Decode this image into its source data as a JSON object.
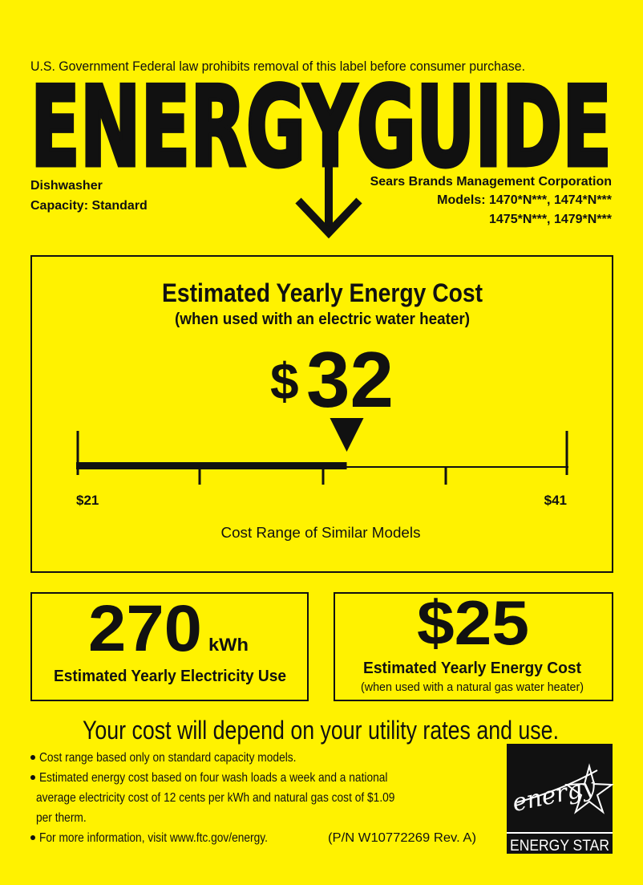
{
  "header": {
    "notice": "U.S. Government  Federal law prohibits removal of this label before consumer purchase.",
    "title": "ENERGYGUIDE"
  },
  "product": {
    "type": "Dishwasher",
    "capacity": "Capacity: Standard",
    "manufacturer": "Sears Brands Management Corporation",
    "models": [
      "Models: 1470*N***, 1474*N***",
      "1475*N***, 1479*N***"
    ]
  },
  "cost": {
    "title": "Estimated Yearly Energy Cost",
    "subtitle": "(when used with an electric water heater)",
    "currency": "$",
    "amount": "32",
    "range": {
      "low": "$21",
      "high": "$41",
      "caption": "Cost Range of Similar Models"
    }
  },
  "electricity": {
    "amount": "270",
    "unit": "kWh",
    "caption": "Estimated Yearly Electricity Use"
  },
  "gas_cost": {
    "amount": "$25",
    "caption": "Estimated Yearly Energy Cost",
    "subtitle": "(when used with a natural gas water heater)"
  },
  "footer": {
    "headline": "Your cost will depend on your utility rates and use.",
    "bullets": [
      [
        "Cost range based only on standard capacity models."
      ],
      [
        "Estimated energy cost based on four wash loads a week and a national",
        "average electricity cost of 12 cents per kWh and natural gas cost of $1.09",
        "per therm."
      ],
      [
        "For more information, visit www.ftc.gov/energy."
      ]
    ],
    "part_number": "(P/N W10772269 Rev. A)"
  },
  "energy_star": {
    "script": "energy",
    "label": "ENERGY STAR"
  }
}
